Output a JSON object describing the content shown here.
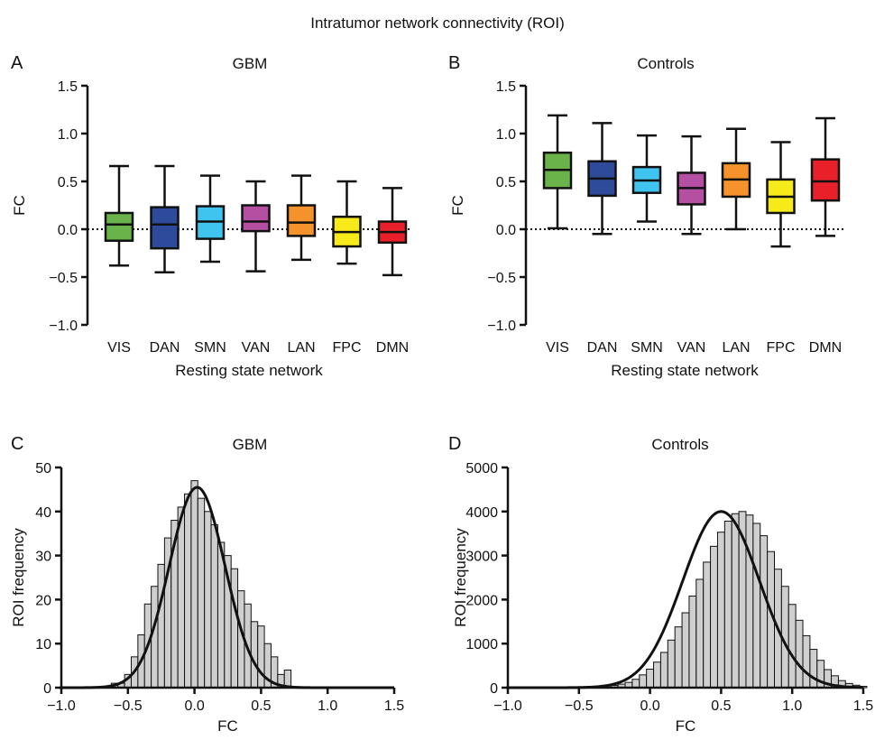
{
  "figure": {
    "title": "Intratumor network connectivity (ROI)"
  },
  "colors": {
    "VIS": "#6ab34a",
    "DAN": "#2d4b9a",
    "SMN": "#3fc4f0",
    "VAN": "#b44fa2",
    "LAN": "#f4922b",
    "FPC": "#f6ea1a",
    "DMN": "#e8202a",
    "histogram_bar": "#cfcfcf",
    "line": "#111111"
  },
  "chart_data": [
    {
      "panel": "A",
      "type": "box",
      "title": "GBM",
      "xlabel": "Resting state network",
      "ylabel": "FC",
      "ylim": [
        -1.0,
        1.5
      ],
      "yticks": [
        "−1.0",
        "−0.5",
        "0.0",
        "0.5",
        "1.0",
        "1.5"
      ],
      "reference_line": 0.0,
      "categories": [
        "VIS",
        "DAN",
        "SMN",
        "VAN",
        "LAN",
        "FPC",
        "DMN"
      ],
      "boxes": [
        {
          "min": -0.38,
          "q1": -0.12,
          "median": 0.05,
          "q3": 0.17,
          "max": 0.66
        },
        {
          "min": -0.45,
          "q1": -0.2,
          "median": 0.05,
          "q3": 0.23,
          "max": 0.66
        },
        {
          "min": -0.34,
          "q1": -0.1,
          "median": 0.08,
          "q3": 0.24,
          "max": 0.56
        },
        {
          "min": -0.44,
          "q1": -0.02,
          "median": 0.08,
          "q3": 0.25,
          "max": 0.5
        },
        {
          "min": -0.32,
          "q1": -0.07,
          "median": 0.07,
          "q3": 0.25,
          "max": 0.56
        },
        {
          "min": -0.36,
          "q1": -0.18,
          "median": -0.03,
          "q3": 0.13,
          "max": 0.5
        },
        {
          "min": -0.48,
          "q1": -0.14,
          "median": -0.03,
          "q3": 0.08,
          "max": 0.43
        }
      ]
    },
    {
      "panel": "B",
      "type": "box",
      "title": "Controls",
      "xlabel": "Resting state network",
      "ylabel": "FC",
      "ylim": [
        -1.0,
        1.5
      ],
      "yticks": [
        "−1.0",
        "−0.5",
        "0.0",
        "0.5",
        "1.0",
        "1.5"
      ],
      "reference_line": 0.0,
      "categories": [
        "VIS",
        "DAN",
        "SMN",
        "VAN",
        "LAN",
        "FPC",
        "DMN"
      ],
      "boxes": [
        {
          "min": 0.01,
          "q1": 0.43,
          "median": 0.62,
          "q3": 0.8,
          "max": 1.19
        },
        {
          "min": -0.05,
          "q1": 0.35,
          "median": 0.53,
          "q3": 0.71,
          "max": 1.11
        },
        {
          "min": 0.08,
          "q1": 0.38,
          "median": 0.51,
          "q3": 0.65,
          "max": 0.98
        },
        {
          "min": -0.05,
          "q1": 0.26,
          "median": 0.43,
          "q3": 0.59,
          "max": 0.97
        },
        {
          "min": 0.0,
          "q1": 0.34,
          "median": 0.52,
          "q3": 0.69,
          "max": 1.05
        },
        {
          "min": -0.18,
          "q1": 0.17,
          "median": 0.34,
          "q3": 0.52,
          "max": 0.91
        },
        {
          "min": -0.07,
          "q1": 0.3,
          "median": 0.5,
          "q3": 0.73,
          "max": 1.16
        }
      ]
    },
    {
      "panel": "C",
      "type": "histogram",
      "title": "GBM",
      "xlabel": "FC",
      "ylabel": "ROI frequency",
      "xlim": [
        -1.0,
        1.5
      ],
      "ylim": [
        0,
        50
      ],
      "xticks": [
        "−1.0",
        "−0.5",
        "0.0",
        "0.5",
        "1.0",
        "1.5"
      ],
      "yticks": [
        "0",
        "10",
        "20",
        "30",
        "40",
        "50"
      ],
      "bin_start": -0.625,
      "bin_width": 0.05,
      "counts": [
        1,
        1,
        3,
        7,
        12,
        19,
        23,
        28,
        34,
        38,
        41,
        44,
        47,
        43,
        40,
        37,
        33,
        30,
        27,
        22,
        19,
        15,
        14,
        10,
        7,
        3,
        4
      ],
      "fit": {
        "type": "gaussian",
        "mean": 0.02,
        "sd": 0.21,
        "amplitude": 45.5
      }
    },
    {
      "panel": "D",
      "type": "histogram",
      "title": "Controls",
      "xlabel": "FC",
      "ylabel": "ROI frequency",
      "xlim": [
        -1.0,
        1.5
      ],
      "ylim": [
        0,
        5000
      ],
      "xticks": [
        "−1.0",
        "−0.5",
        "0.0",
        "0.5",
        "1.0",
        "1.5"
      ],
      "yticks": [
        "0",
        "1000",
        "2000",
        "3000",
        "4000",
        "5000"
      ],
      "bin_start": -0.275,
      "bin_width": 0.05,
      "counts": [
        50,
        80,
        120,
        190,
        290,
        420,
        580,
        800,
        1080,
        1380,
        1700,
        2080,
        2460,
        2850,
        3210,
        3530,
        3780,
        3950,
        4000,
        3920,
        3730,
        3450,
        3090,
        2690,
        2300,
        1890,
        1530,
        1180,
        870,
        620,
        410,
        270,
        160,
        95,
        55,
        30
      ],
      "fit": {
        "type": "gaussian",
        "mean": 0.5,
        "sd": 0.27,
        "amplitude": 4000
      }
    }
  ]
}
